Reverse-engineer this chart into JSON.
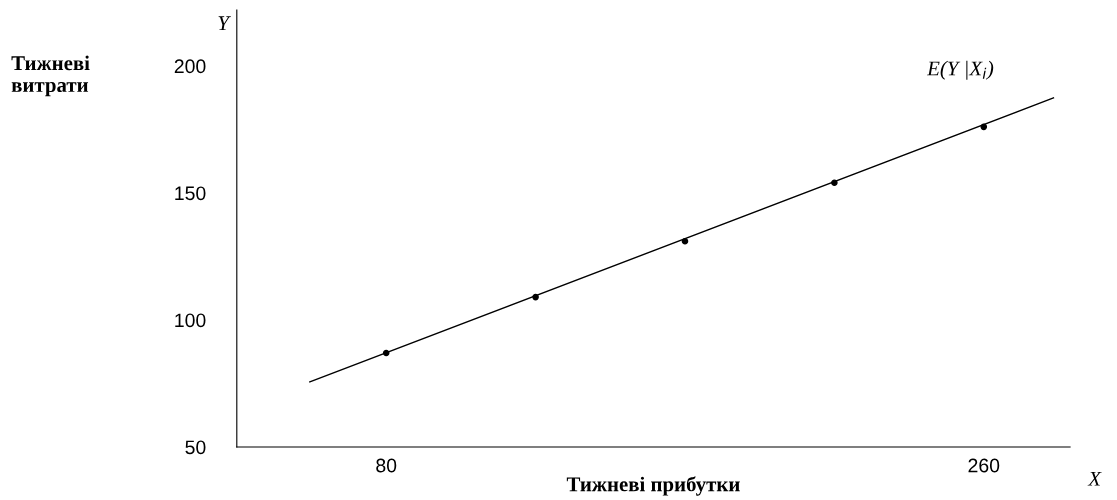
{
  "chart_data": {
    "type": "scatter",
    "xlabel": "Тижневі прибутки",
    "ylabel": "Тижневі витрати",
    "xlim": [
      35,
      286
    ],
    "ylim": [
      50,
      222
    ],
    "xticks": [
      80,
      260
    ],
    "yticks": [
      50,
      100,
      150,
      200
    ],
    "grid": false,
    "legend": false,
    "series": [
      {
        "type": "line",
        "color": "#000000",
        "x": [
          57,
          281
        ],
        "values": [
          75.6,
          187.4
        ],
        "marker": "none",
        "line_style": "solid"
      },
      {
        "color": "#000000",
        "x": [
          80,
          125,
          170,
          215,
          260
        ],
        "values": [
          87,
          109,
          131,
          154,
          176
        ],
        "marker": "circle"
      }
    ],
    "annotations": [
      "E(Y |X$_{i}$)",
      "Y",
      "X"
    ]
  }
}
